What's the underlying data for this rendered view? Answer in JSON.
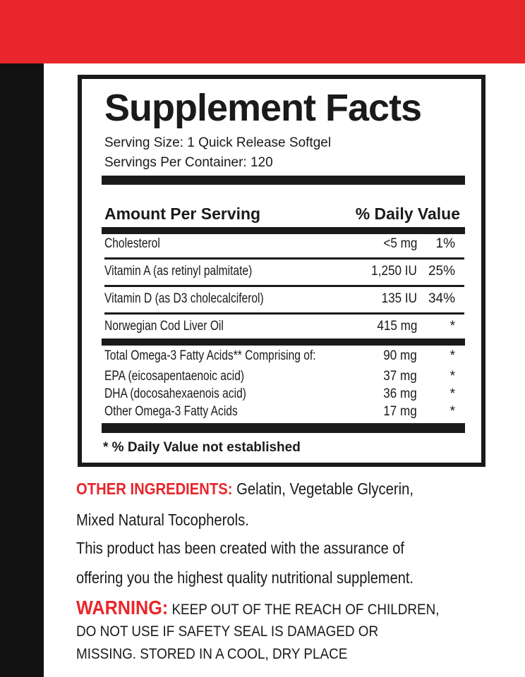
{
  "colors": {
    "accent_red": "#e8262b",
    "black": "#1a1a1a"
  },
  "label": {
    "title": "Supplement Facts",
    "serving_size": "Serving Size:  1 Quick Release Softgel",
    "servings_per_container": "Servings Per Container:  120",
    "header_amount": "Amount Per Serving",
    "header_dv": "% Daily Value",
    "rows": [
      {
        "name": "Cholesterol",
        "amount": "<5 mg",
        "dv": "1%"
      },
      {
        "name": "Vitamin A (as retinyl palmitate)",
        "amount": "1,250 IU",
        "dv": "25%"
      },
      {
        "name": "Vitamin D (as D3 cholecalciferol)",
        "amount": "135 IU",
        "dv": "34%"
      },
      {
        "name": "Norwegian Cod Liver Oil",
        "amount": "415 mg",
        "dv": "*"
      },
      {
        "name": "Total Omega-3 Fatty Acids** Comprising of:",
        "amount": "90 mg",
        "dv": "*"
      },
      {
        "name": "EPA (eicosapentaenoic acid)",
        "amount": "37 mg",
        "dv": "*"
      },
      {
        "name": "DHA (docosahexaenois acid)",
        "amount": "36 mg",
        "dv": "*"
      },
      {
        "name": "Other Omega-3 Fatty Acids",
        "amount": "17 mg",
        "dv": "*"
      }
    ],
    "footnote": "* % Daily Value not established"
  },
  "other_ingredients": {
    "label": "OTHER INGREDIENTS:",
    "text1": " Gelatin, Vegetable Glycerin,",
    "text2": "Mixed Natural Tocopherols."
  },
  "assurance": {
    "line1": "This product has been created with the  assurance of",
    "line2": "offering you the highest quality nutritional supplement."
  },
  "warning": {
    "label": "WARNING:",
    "line1": " KEEP OUT OF THE REACH OF CHILDREN,",
    "line2": "DO NOT USE  IF SAFETY  SEAL IS DAMAGED  OR",
    "line3": "MISSING. STORED IN A COOL, DRY PLACE"
  }
}
